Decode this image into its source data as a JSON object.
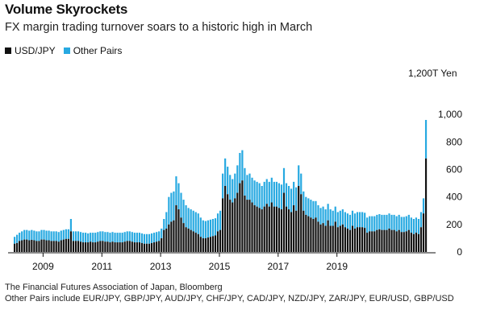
{
  "title": "Volume Skyrockets",
  "subtitle": "FX margin trading turnover soars to a historic high in March",
  "legend": [
    {
      "label": "USD/JPY",
      "color": "#111111"
    },
    {
      "label": "Other Pairs",
      "color": "#27a9e1"
    }
  ],
  "unit_label": "1,200T Yen",
  "source": {
    "line1": "The Financial Futures Association of Japan, Bloomberg",
    "line2": "Other Pairs include EUR/JPY, GBP/JPY, AUD/JPY, CHF/JPY, CAD/JPY, NZD/JPY, ZAR/JPY, EUR/USD, GBP/USD"
  },
  "chart_data": {
    "type": "bar",
    "stacked": true,
    "title": "Volume Skyrockets",
    "ylabel": "T Yen",
    "ylim": [
      0,
      1200
    ],
    "yticks": [
      "0",
      "200",
      "400",
      "600",
      "800",
      "1,000",
      "1,200"
    ],
    "xticks": [
      "2009",
      "2011",
      "2013",
      "2015",
      "2017",
      "2019"
    ],
    "x_start": "2008-01",
    "x_end": "2019-03",
    "series": [
      {
        "name": "USD/JPY",
        "color": "#111111",
        "values": [
          60,
          65,
          80,
          85,
          90,
          90,
          85,
          88,
          85,
          80,
          80,
          90,
          90,
          85,
          85,
          80,
          80,
          80,
          75,
          85,
          90,
          95,
          95,
          150,
          80,
          80,
          80,
          75,
          70,
          70,
          70,
          75,
          70,
          70,
          75,
          80,
          80,
          75,
          75,
          70,
          75,
          70,
          70,
          70,
          70,
          75,
          80,
          80,
          75,
          70,
          70,
          70,
          65,
          60,
          60,
          60,
          65,
          70,
          75,
          80,
          100,
          160,
          170,
          200,
          220,
          230,
          340,
          310,
          250,
          210,
          180,
          170,
          160,
          150,
          140,
          130,
          110,
          100,
          100,
          105,
          110,
          115,
          120,
          150,
          160,
          390,
          480,
          420,
          380,
          360,
          390,
          430,
          500,
          520,
          410,
          380,
          380,
          360,
          340,
          330,
          320,
          310,
          330,
          350,
          330,
          360,
          330,
          330,
          320,
          310,
          430,
          330,
          310,
          290,
          340,
          300,
          480,
          420,
          300,
          270,
          260,
          250,
          240,
          250,
          220,
          200,
          210,
          190,
          230,
          190,
          190,
          220,
          180,
          190,
          200,
          180,
          170,
          160,
          190,
          170,
          180,
          180,
          180,
          175,
          140,
          150,
          150,
          150,
          160,
          165,
          160,
          160,
          160,
          170,
          160,
          160,
          150,
          160,
          145,
          145,
          150,
          160,
          140,
          130,
          140,
          130,
          180,
          280,
          680
        ]
      },
      {
        "name": "Other Pairs",
        "color": "#27a9e1",
        "values": [
          50,
          60,
          60,
          65,
          70,
          70,
          70,
          72,
          70,
          70,
          70,
          70,
          70,
          70,
          70,
          70,
          70,
          70,
          70,
          70,
          70,
          70,
          70,
          90,
          70,
          70,
          70,
          70,
          70,
          70,
          65,
          65,
          70,
          70,
          70,
          70,
          70,
          70,
          70,
          70,
          70,
          70,
          70,
          70,
          70,
          70,
          70,
          70,
          70,
          70,
          70,
          70,
          70,
          70,
          70,
          70,
          70,
          70,
          70,
          70,
          70,
          80,
          120,
          200,
          210,
          210,
          210,
          190,
          180,
          170,
          160,
          150,
          150,
          150,
          150,
          150,
          140,
          130,
          125,
          125,
          125,
          125,
          125,
          130,
          140,
          180,
          200,
          200,
          180,
          170,
          180,
          200,
          220,
          220,
          200,
          180,
          190,
          180,
          180,
          180,
          180,
          170,
          180,
          180,
          180,
          180,
          180,
          180,
          180,
          180,
          180,
          170,
          170,
          170,
          170,
          170,
          150,
          150,
          140,
          130,
          130,
          130,
          130,
          120,
          120,
          120,
          120,
          120,
          120,
          120,
          110,
          110,
          110,
          110,
          110,
          110,
          110,
          110,
          110,
          110,
          110,
          110,
          110,
          110,
          110,
          110,
          110,
          110,
          110,
          110,
          110,
          110,
          110,
          110,
          110,
          110,
          110,
          110,
          110,
          110,
          110,
          110,
          110,
          110,
          110,
          110,
          110,
          110,
          280
        ]
      }
    ]
  }
}
